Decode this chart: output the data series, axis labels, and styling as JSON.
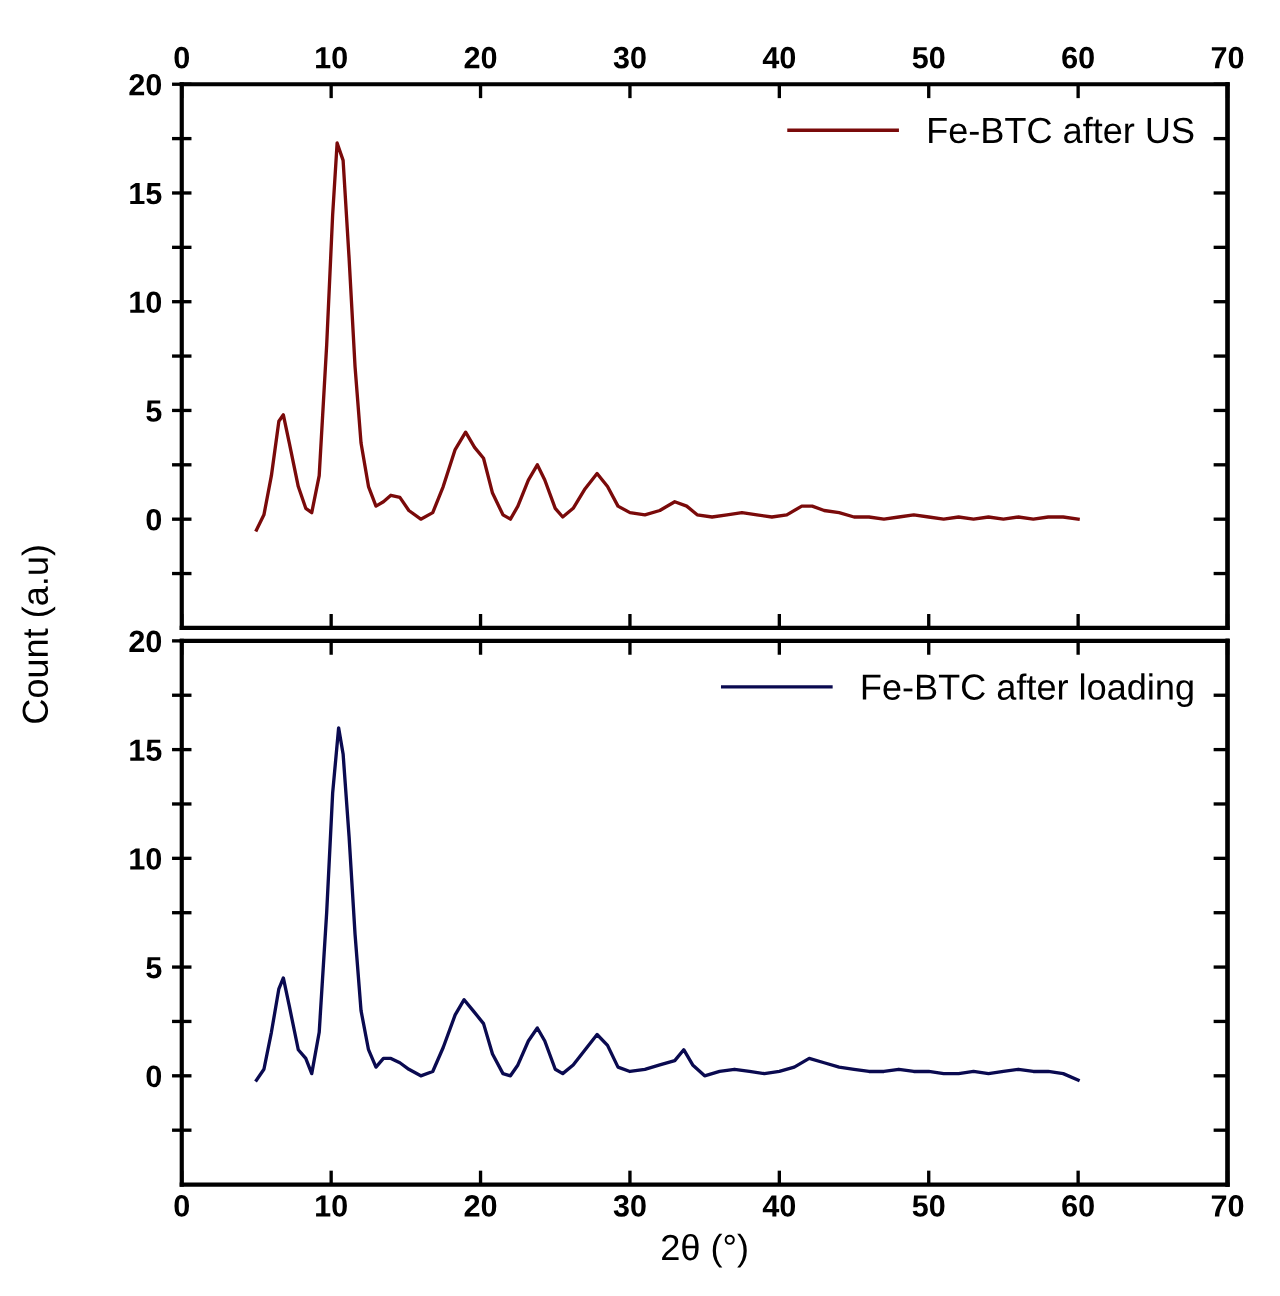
{
  "chart_data": [
    {
      "type": "line",
      "ylabel": "Count (a.u)",
      "legend": "top right",
      "grid": false,
      "xlim": [
        0,
        70
      ],
      "ylim": [
        -5,
        20
      ],
      "xticks": [
        0,
        10,
        20,
        30,
        40,
        50,
        60,
        70
      ],
      "yticks": [
        {
          "value": -2.5,
          "label": null
        },
        0,
        {
          "value": 2.5,
          "label": null
        },
        5,
        {
          "value": 7.5,
          "label": null
        },
        10,
        {
          "value": 12.5,
          "label": null
        },
        15,
        {
          "value": 17.5,
          "label": null
        },
        20
      ],
      "series": [
        {
          "name": "Fe-BTC after US",
          "color": "#7a0a0a",
          "x": [
            5,
            5.5,
            6,
            6.5,
            6.8,
            7.2,
            7.8,
            8.3,
            8.7,
            9.2,
            9.7,
            10.1,
            10.4,
            10.8,
            11.2,
            11.6,
            12,
            12.5,
            13,
            13.5,
            14,
            14.6,
            15.2,
            16,
            16.8,
            17.5,
            18.3,
            19,
            19.6,
            20.2,
            20.8,
            21.5,
            22,
            22.5,
            23.2,
            23.8,
            24.3,
            25,
            25.5,
            26.2,
            27,
            27.8,
            28.5,
            29.2,
            30,
            31,
            32,
            33,
            33.8,
            34.5,
            35.5,
            36.5,
            37.5,
            38.5,
            39.5,
            40.5,
            41.5,
            42.2,
            43,
            44,
            45,
            46,
            47,
            48,
            49,
            50,
            51,
            52,
            53,
            54,
            55,
            56,
            57,
            58,
            59,
            60
          ],
          "values": [
            -0.5,
            0.2,
            2,
            4.5,
            4.8,
            3.5,
            1.5,
            0.5,
            0.3,
            2,
            8,
            14,
            17.3,
            16.5,
            12,
            7,
            3.5,
            1.5,
            0.6,
            0.8,
            1.1,
            1.0,
            0.4,
            0.0,
            0.3,
            1.5,
            3.2,
            4.0,
            3.3,
            2.8,
            1.2,
            0.2,
            0,
            0.6,
            1.8,
            2.5,
            1.8,
            0.5,
            0.1,
            0.5,
            1.4,
            2.1,
            1.5,
            0.6,
            0.3,
            0.2,
            0.4,
            0.8,
            0.6,
            0.2,
            0.1,
            0.2,
            0.3,
            0.2,
            0.1,
            0.2,
            0.6,
            0.6,
            0.4,
            0.3,
            0.1,
            0.1,
            0.0,
            0.1,
            0.2,
            0.1,
            0.0,
            0.1,
            0.0,
            0.1,
            0.0,
            0.1,
            0.0,
            0.1,
            0.1,
            0.0
          ]
        }
      ]
    },
    {
      "type": "line",
      "xlabel": "2θ (°)",
      "legend": "top right",
      "grid": false,
      "xlim": [
        0,
        70
      ],
      "ylim": [
        -5,
        20
      ],
      "xticks": [
        0,
        10,
        20,
        30,
        40,
        50,
        60,
        70
      ],
      "yticks": [
        {
          "value": -2.5,
          "label": null
        },
        0,
        {
          "value": 2.5,
          "label": null
        },
        5,
        {
          "value": 7.5,
          "label": null
        },
        10,
        {
          "value": 12.5,
          "label": null
        },
        15,
        {
          "value": 17.5,
          "label": null
        },
        20
      ],
      "series": [
        {
          "name": "Fe-BTC after loading",
          "color": "#0a0a50",
          "x": [
            5,
            5.5,
            6,
            6.5,
            6.8,
            7.2,
            7.8,
            8.3,
            8.7,
            9.2,
            9.7,
            10.1,
            10.5,
            10.8,
            11.2,
            11.6,
            12,
            12.5,
            13,
            13.5,
            14,
            14.6,
            15.2,
            16,
            16.8,
            17.5,
            18.3,
            18.9,
            19.5,
            20.2,
            20.8,
            21.5,
            22,
            22.5,
            23.2,
            23.8,
            24.3,
            25,
            25.5,
            26.2,
            27,
            27.8,
            28.5,
            29.2,
            30,
            31,
            32,
            33,
            33.6,
            34.2,
            35,
            36,
            37,
            38,
            39,
            40,
            41,
            42,
            43,
            44,
            45,
            46,
            47,
            48,
            49,
            50,
            51,
            52,
            53,
            54,
            55,
            56,
            57,
            58,
            59,
            60
          ],
          "values": [
            -0.2,
            0.3,
            2,
            4.0,
            4.5,
            3.2,
            1.2,
            0.8,
            0.1,
            2,
            7.5,
            13,
            16,
            14.8,
            11,
            6.5,
            3,
            1.2,
            0.4,
            0.8,
            0.8,
            0.6,
            0.3,
            0.0,
            0.2,
            1.3,
            2.8,
            3.5,
            3.0,
            2.4,
            1.0,
            0.1,
            0,
            0.5,
            1.6,
            2.2,
            1.6,
            0.3,
            0.1,
            0.5,
            1.2,
            1.9,
            1.4,
            0.4,
            0.2,
            0.3,
            0.5,
            0.7,
            1.2,
            0.5,
            0.0,
            0.2,
            0.3,
            0.2,
            0.1,
            0.2,
            0.4,
            0.8,
            0.6,
            0.4,
            0.3,
            0.2,
            0.2,
            0.3,
            0.2,
            0.2,
            0.1,
            0.1,
            0.2,
            0.1,
            0.2,
            0.3,
            0.2,
            0.2,
            0.1,
            -0.2
          ]
        }
      ]
    }
  ]
}
